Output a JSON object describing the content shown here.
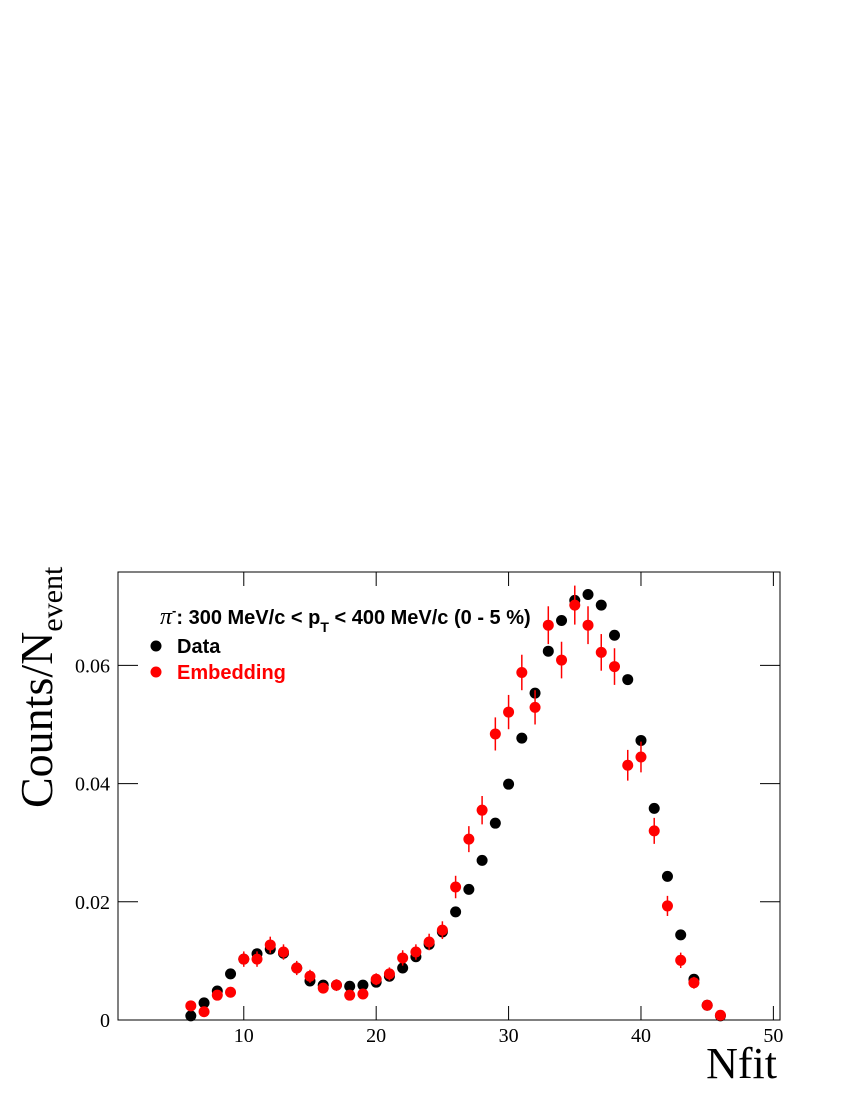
{
  "chart_data": {
    "type": "scatter",
    "x_label": "Nfit",
    "y_label": {
      "main": "Counts/N",
      "sub": "event"
    },
    "annotation": [
      "π",
      "-",
      ": 300 MeV/c < p",
      "T",
      " < 400 MeV/c (0 - 5 %)"
    ],
    "xlim": [
      0.5,
      50.5
    ],
    "xticks": [
      10,
      20,
      30,
      40,
      50
    ],
    "ylim": [
      0,
      0.0758
    ],
    "yticks": [
      0,
      0.02,
      0.04,
      0.06
    ],
    "x": [
      6,
      7,
      8,
      9,
      10,
      11,
      12,
      13,
      14,
      15,
      16,
      17,
      18,
      19,
      20,
      21,
      22,
      23,
      24,
      25,
      26,
      27,
      28,
      29,
      30,
      31,
      32,
      33,
      34,
      35,
      36,
      37,
      38,
      39,
      40,
      41,
      42,
      43,
      44,
      45,
      46
    ],
    "series": [
      {
        "name": "Data",
        "color": "#000000",
        "values": [
          0.0007,
          0.0029,
          0.0049,
          0.0078,
          0.0103,
          0.0112,
          0.012,
          0.0113,
          0.0088,
          0.0066,
          0.0059,
          0.0059,
          0.0057,
          0.0059,
          0.0064,
          0.0074,
          0.0088,
          0.0107,
          0.0128,
          0.0149,
          0.0183,
          0.0221,
          0.027,
          0.0333,
          0.0399,
          0.0477,
          0.0553,
          0.0624,
          0.0676,
          0.071,
          0.072,
          0.0702,
          0.0651,
          0.0576,
          0.0473,
          0.0358,
          0.0243,
          0.0144,
          0.0069,
          0.0025,
          0.0007
        ]
      },
      {
        "name": "Embedding",
        "color": "#ff0000",
        "values": [
          0.0024,
          0.0014,
          0.0042,
          0.0047,
          0.0103,
          0.0103,
          0.0127,
          0.0115,
          0.0088,
          0.0074,
          0.0054,
          0.0059,
          0.0042,
          0.0044,
          0.0069,
          0.0078,
          0.0105,
          0.0115,
          0.0132,
          0.0152,
          0.0225,
          0.0306,
          0.0355,
          0.0484,
          0.0521,
          0.0588,
          0.0529,
          0.0668,
          0.0609,
          0.0702,
          0.0668,
          0.0622,
          0.0598,
          0.0431,
          0.0445,
          0.032,
          0.0193,
          0.0101,
          0.0063,
          0.0025,
          0.0008
        ],
        "errors": [
          0.0006,
          0.0005,
          0.0008,
          0.0009,
          0.0013,
          0.0013,
          0.0014,
          0.0013,
          0.0012,
          0.0011,
          0.0009,
          0.001,
          0.0008,
          0.0008,
          0.001,
          0.0011,
          0.0013,
          0.0013,
          0.0014,
          0.0015,
          0.0019,
          0.0022,
          0.0024,
          0.0028,
          0.0029,
          0.003,
          0.0029,
          0.0032,
          0.0031,
          0.0033,
          0.0032,
          0.0031,
          0.0031,
          0.0026,
          0.0026,
          0.0022,
          0.0017,
          0.0013,
          0.001,
          0.0006,
          0.0004
        ]
      }
    ]
  }
}
